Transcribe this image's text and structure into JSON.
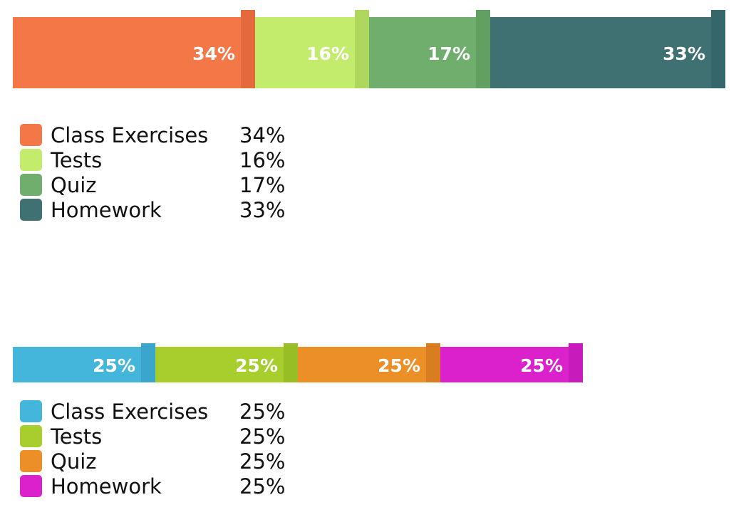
{
  "chart_data": [
    {
      "type": "bar",
      "orientation": "horizontal",
      "stacked": true,
      "categories": [
        "Class Exercises",
        "Tests",
        "Quiz",
        "Homework"
      ],
      "values": [
        34,
        16,
        17,
        33
      ],
      "value_labels": [
        "34%",
        "16%",
        "17%",
        "33%"
      ],
      "unit": "%",
      "colors": [
        "#F47748",
        "#C3EC6C",
        "#70AE6E",
        "#3F7172"
      ],
      "edge_colors": [
        "#E46A3E",
        "#AED85D",
        "#62A062",
        "#33676A"
      ],
      "legend": {
        "position": "bottom-left",
        "entries": [
          "Class Exercises",
          "Tests",
          "Quiz",
          "Homework"
        ],
        "values": [
          "34%",
          "16%",
          "17%",
          "33%"
        ]
      },
      "title": "",
      "xlabel": "",
      "ylabel": "",
      "grid": false
    },
    {
      "type": "bar",
      "orientation": "horizontal",
      "stacked": true,
      "categories": [
        "Class Exercises",
        "Tests",
        "Quiz",
        "Homework"
      ],
      "values": [
        25,
        25,
        25,
        25
      ],
      "value_labels": [
        "25%",
        "25%",
        "25%",
        "25%"
      ],
      "unit": "%",
      "colors": [
        "#45B6DB",
        "#A7CE2D",
        "#EC8F27",
        "#DA21CC"
      ],
      "edge_colors": [
        "#3BA5CB",
        "#97BE25",
        "#D97E20",
        "#C71BBC"
      ],
      "legend": {
        "position": "bottom-left",
        "entries": [
          "Class Exercises",
          "Tests",
          "Quiz",
          "Homework"
        ],
        "values": [
          "25%",
          "25%",
          "25%",
          "25%"
        ]
      },
      "title": "",
      "xlabel": "",
      "ylabel": "",
      "grid": false
    }
  ]
}
